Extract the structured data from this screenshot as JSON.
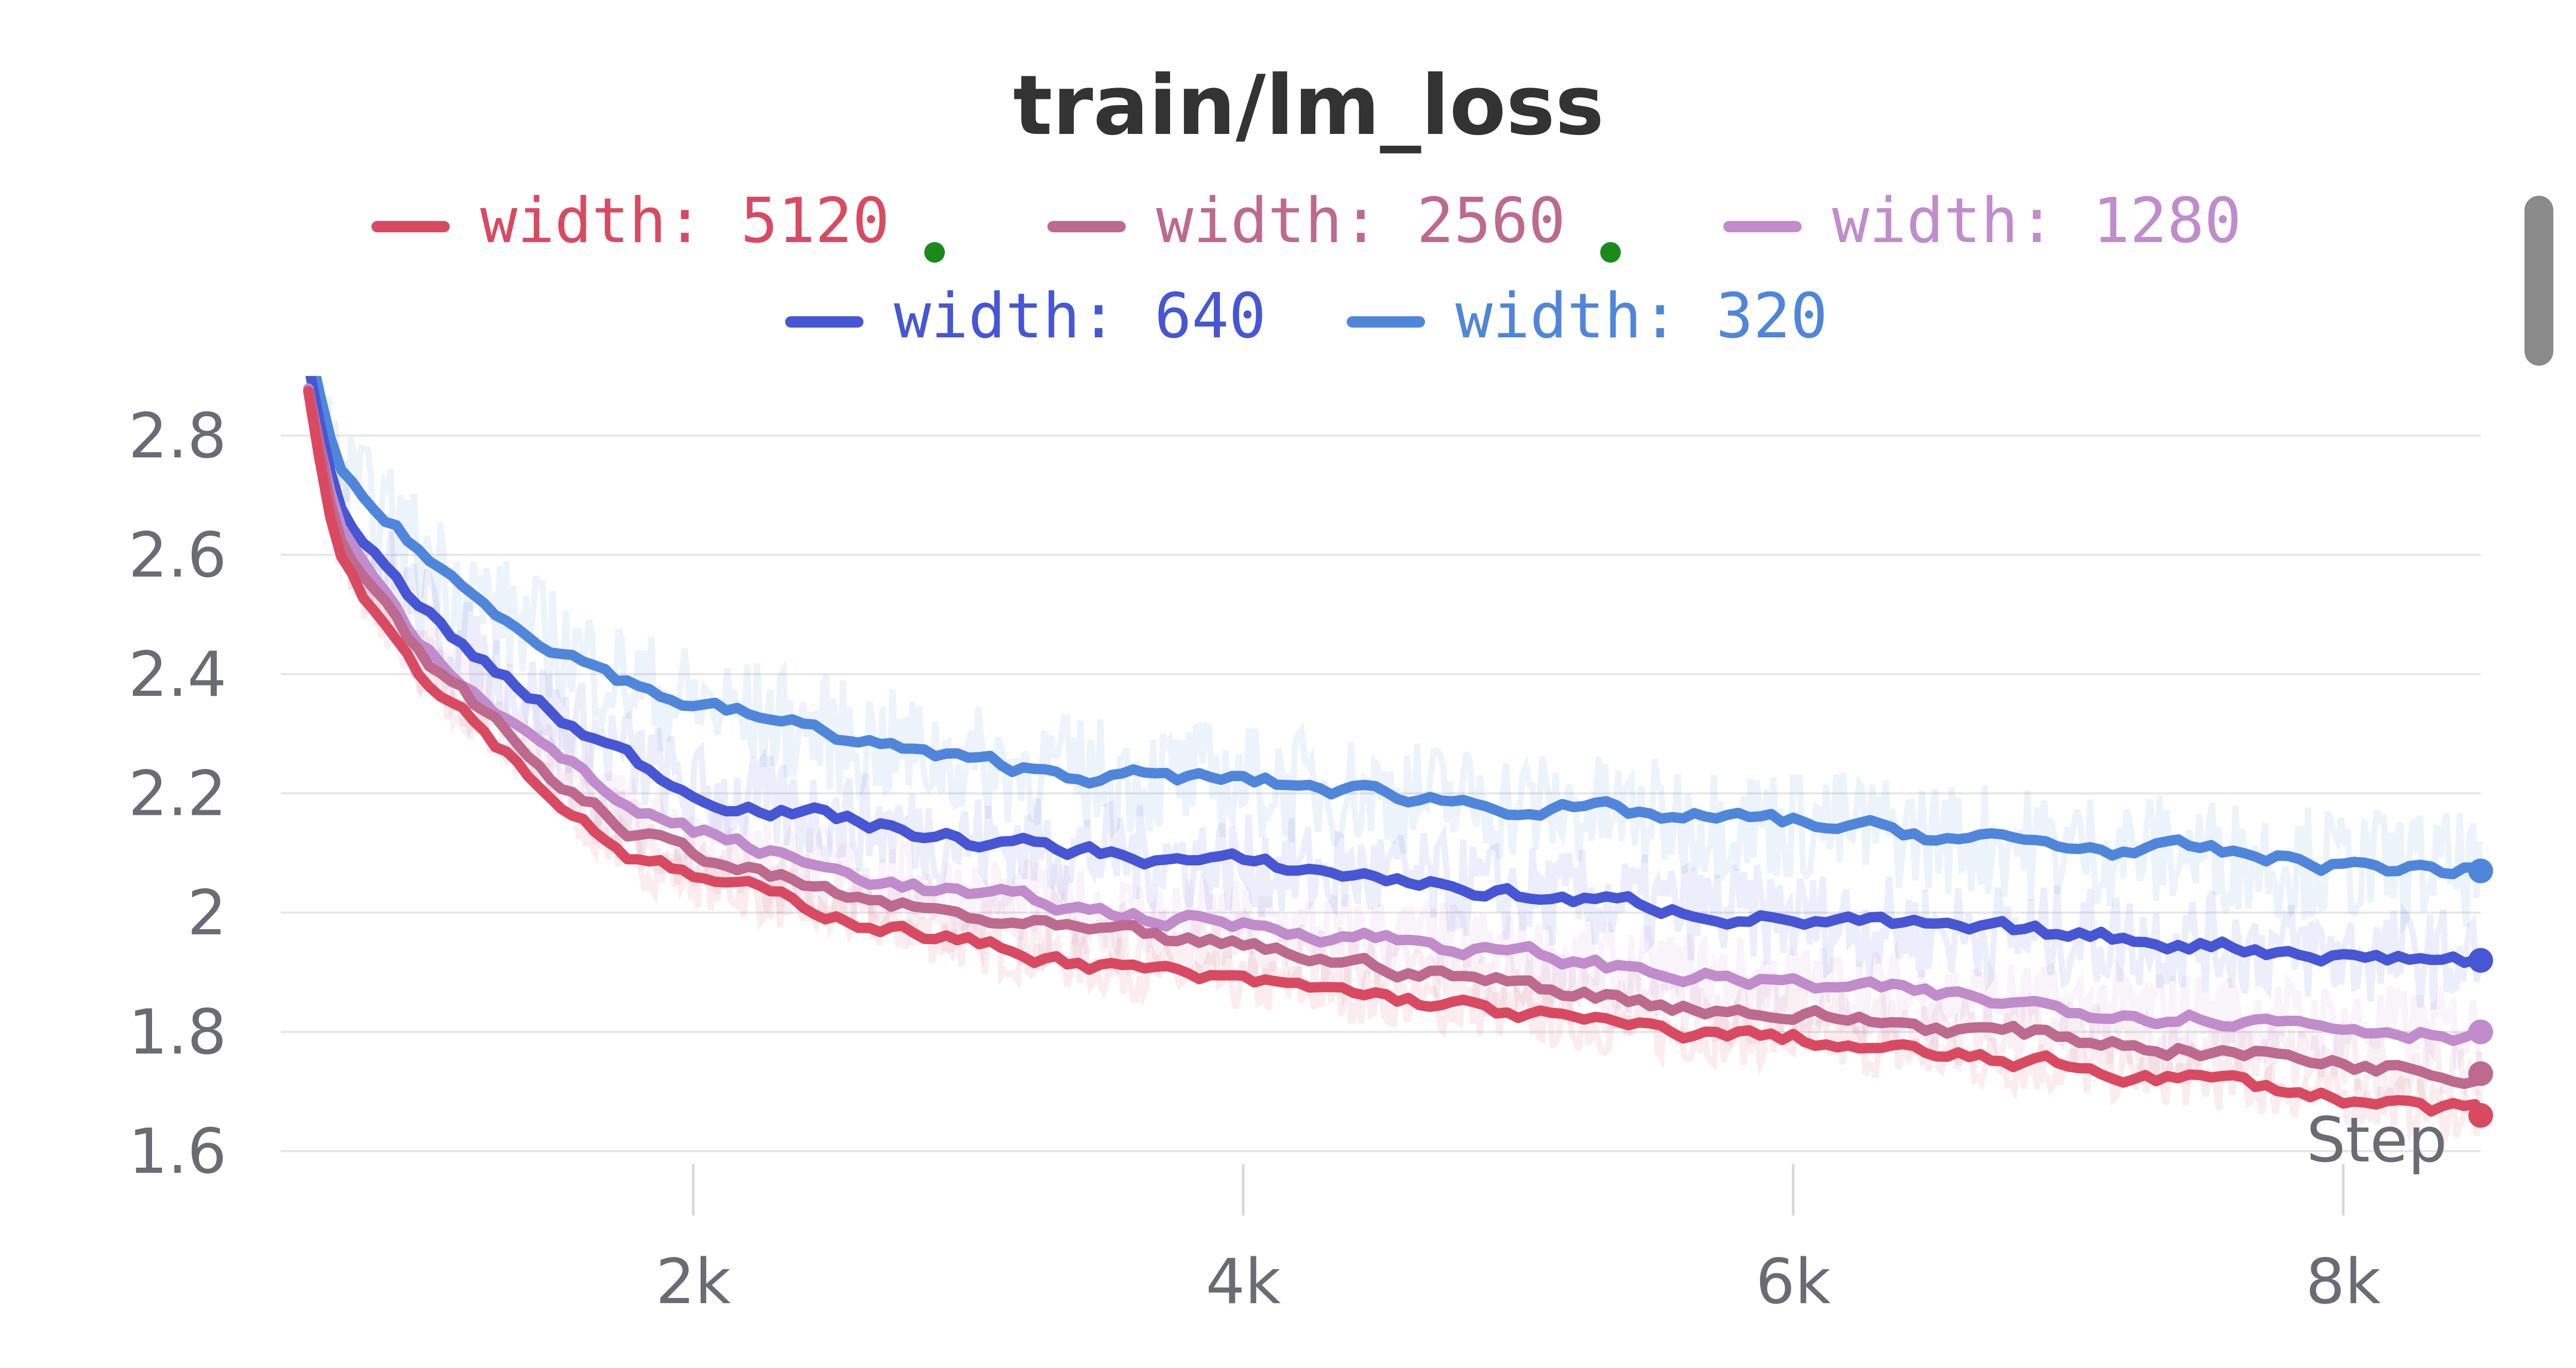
{
  "chart_data": {
    "type": "line",
    "title": "train/lm_loss",
    "xlabel": "Step",
    "ylabel": "",
    "xlim": [
      500,
      8500
    ],
    "ylim": [
      1.6,
      2.9
    ],
    "x_ticks": [
      2000,
      4000,
      6000,
      8000
    ],
    "x_tick_labels": [
      "2k",
      "4k",
      "6k",
      "8k"
    ],
    "y_ticks": [
      1.6,
      1.8,
      2.0,
      2.2,
      2.4,
      2.6,
      2.8
    ],
    "y_tick_labels": [
      "1.6",
      "1.8",
      "2",
      "2.2",
      "2.4",
      "2.6",
      "2.8"
    ],
    "grid": "horizontal",
    "legend_position": "top",
    "x": [
      600,
      700,
      800,
      1000,
      1200,
      1500,
      1800,
      2000,
      2500,
      3000,
      3500,
      4000,
      4500,
      5000,
      5500,
      6000,
      6500,
      7000,
      7500,
      8000,
      8500
    ],
    "series": [
      {
        "name": "width: 5120",
        "color": "#d94a62",
        "marked": true,
        "values": [
          2.88,
          2.62,
          2.54,
          2.41,
          2.33,
          2.19,
          2.09,
          2.06,
          2.0,
          1.95,
          1.91,
          1.88,
          1.86,
          1.83,
          1.8,
          1.79,
          1.76,
          1.74,
          1.72,
          1.69,
          1.66
        ]
      },
      {
        "name": "width: 2560",
        "color": "#bd6a8e",
        "marked": true,
        "values": [
          2.88,
          2.64,
          2.56,
          2.43,
          2.35,
          2.22,
          2.13,
          2.1,
          2.03,
          1.99,
          1.96,
          1.94,
          1.91,
          1.88,
          1.85,
          1.83,
          1.81,
          1.79,
          1.77,
          1.75,
          1.73
        ]
      },
      {
        "name": "width: 1280",
        "color": "#c08ccc",
        "marked": false,
        "values": [
          2.88,
          2.66,
          2.58,
          2.46,
          2.38,
          2.26,
          2.17,
          2.14,
          2.07,
          2.03,
          2.0,
          1.98,
          1.96,
          1.93,
          1.9,
          1.88,
          1.86,
          1.84,
          1.83,
          1.81,
          1.8
        ]
      },
      {
        "name": "width: 640",
        "color": "#4656d4",
        "marked": false,
        "values": [
          2.92,
          2.7,
          2.62,
          2.51,
          2.43,
          2.33,
          2.25,
          2.2,
          2.16,
          2.12,
          2.1,
          2.08,
          2.06,
          2.03,
          2.01,
          1.99,
          1.97,
          1.96,
          1.95,
          1.93,
          1.92
        ]
      },
      {
        "name": "width: 320",
        "color": "#4f86dc",
        "marked": false,
        "values": [
          2.95,
          2.74,
          2.69,
          2.61,
          2.53,
          2.45,
          2.38,
          2.35,
          2.3,
          2.25,
          2.23,
          2.22,
          2.2,
          2.18,
          2.16,
          2.15,
          2.13,
          2.11,
          2.1,
          2.08,
          2.07
        ]
      }
    ]
  }
}
